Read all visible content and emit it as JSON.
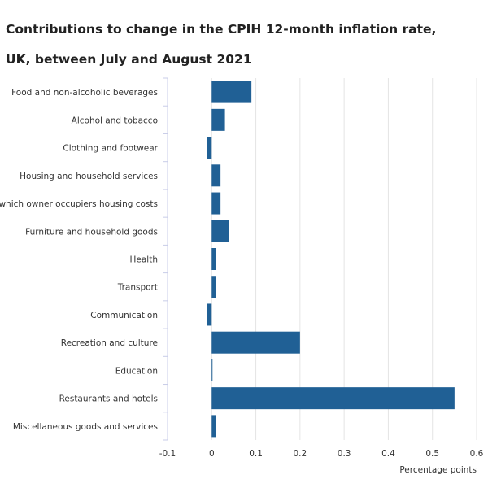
{
  "chart_data": {
    "type": "bar",
    "orientation": "horizontal",
    "title": "Contributions to change in the CPIH 12-month inflation rate, UK, between July and August 2021",
    "xlabel": "Percentage points",
    "ylabel": "",
    "xlim": [
      -0.1,
      0.6
    ],
    "xticks": [
      -0.1,
      0,
      0.1,
      0.2,
      0.3,
      0.4,
      0.5,
      0.6
    ],
    "xtick_labels": [
      "-0.1",
      "0",
      "0.1",
      "0.2",
      "0.3",
      "0.4",
      "0.5",
      "0.6"
    ],
    "grid": true,
    "categories": [
      "Food and non-alcoholic beverages",
      "Alcohol and tobacco",
      "Clothing and footwear",
      "Housing and household services",
      "of which owner occupiers housing costs",
      "Furniture and household goods",
      "Health",
      "Transport",
      "Communication",
      "Recreation and culture",
      "Education",
      "Restaurants and hotels",
      "Miscellaneous goods and services"
    ],
    "values": [
      0.09,
      0.03,
      -0.01,
      0.02,
      0.02,
      0.04,
      0.01,
      0.01,
      -0.01,
      0.2,
      0.0,
      0.55,
      0.01
    ],
    "bar_color": "#206095"
  }
}
